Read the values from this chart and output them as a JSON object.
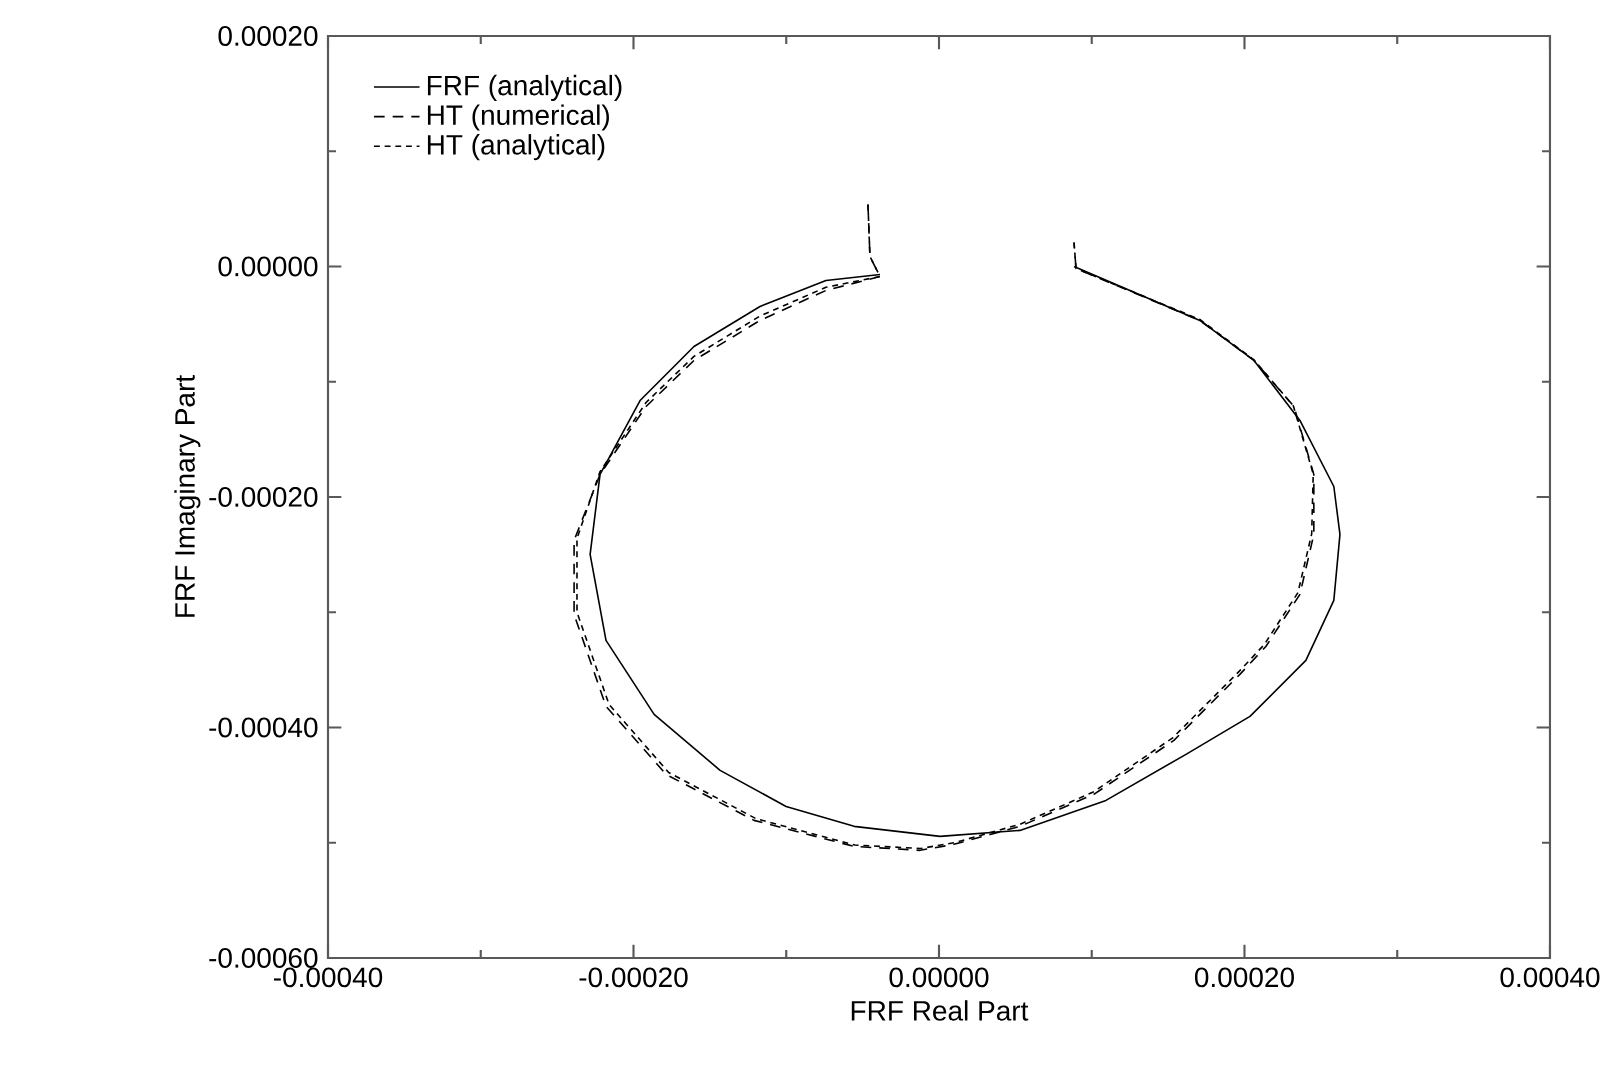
{
  "chart_data": {
    "type": "line",
    "xlabel": "FRF Real Part",
    "ylabel": "FRF Imaginary Part",
    "xlim": [
      -0.0004,
      0.0004
    ],
    "ylim": [
      -0.0006,
      0.0002
    ],
    "xticks": [
      {
        "value": -0.0004,
        "label": "-0.00040"
      },
      {
        "value": -0.0002,
        "label": "-0.00020"
      },
      {
        "value": 0,
        "label": "0.00000"
      },
      {
        "value": 0.0002,
        "label": "0.00020"
      },
      {
        "value": 0.0004,
        "label": "0.00040"
      }
    ],
    "yticks": [
      {
        "value": -0.0006,
        "label": "-0.00060"
      },
      {
        "value": -0.0004,
        "label": "-0.00040"
      },
      {
        "value": -0.0002,
        "label": "-0.00020"
      },
      {
        "value": 0,
        "label": "0.00000"
      },
      {
        "value": 0.0002,
        "label": "0.00020"
      }
    ],
    "legend": "top left",
    "grid": false,
    "marker": "none",
    "series": [
      {
        "name": "FRF (analytical)",
        "color": "#000000",
        "line_style": "solid",
        "x": [
          -3.86e-05,
          -7.4e-05,
          -0.0001172,
          -0.0001604,
          -0.0001957,
          -0.0002219,
          -0.0002284,
          -0.000218,
          -0.0001865,
          -0.0001433,
          -0.0001001,
          -5.56e-05,
          7e-07,
          5.3e-05,
          0.0001093,
          0.0001617,
          0.0002036,
          0.0002402,
          0.0002585,
          0.0002625,
          0.0002585,
          0.0002363,
          0.0002062,
          0.0001708,
          8.84e-05
        ],
        "values": [
          -6.9e-06,
          -1.21e-05,
          -3.47e-05,
          -6.94e-05,
          -0.0001163,
          -0.0001804,
          -0.0002498,
          -0.0003244,
          -0.0003886,
          -0.0004372,
          -0.0004685,
          -0.0004858,
          -0.0004945,
          -0.0004893,
          -0.0004633,
          -0.0004233,
          -0.0003904,
          -0.0003418,
          -0.0002897,
          -0.0002325,
          -0.0001909,
          -0.0001336,
          -8.15e-05,
          -4.68e-05,
          0
        ]
      },
      {
        "name": "HT (numerical)",
        "color": "#000000",
        "line_style": "dashed",
        "x": [
          -4.65e-05,
          -4.52e-05,
          -3.86e-05,
          -7.4e-05,
          -0.0001172,
          -0.0001604,
          -0.0001918,
          -0.0002219,
          -0.0002389,
          -0.0002389,
          -0.000218,
          -0.0001787,
          -0.0001211,
          -5.56e-05,
          -1.24e-05,
          9.8e-06,
          5.3e-05,
          0.0001014,
          0.0001538,
          0.000197,
          0.000214,
          0.0002363,
          0.0002454,
          0.0002454,
          0.0002324,
          0.0002062,
          0.0001708,
          8.97e-05,
          8.84e-05
        ],
        "values": [
          5.38e-05,
          8.7e-06,
          -8.7e-06,
          -2.08e-05,
          -4.68e-05,
          -8.15e-05,
          -0.0001215,
          -0.0001804,
          -0.0002377,
          -0.0003019,
          -0.0003817,
          -0.0004407,
          -0.0004806,
          -0.0005032,
          -0.0005066,
          -0.0005014,
          -0.0004858,
          -0.000458,
          -0.0004112,
          -0.0003539,
          -0.0003297,
          -0.0002845,
          -0.0002325,
          -0.0001804,
          -0.0001215,
          -8.15e-05,
          -4.68e-05,
          -1.7e-06,
          2.08e-05
        ]
      },
      {
        "name": "HT (analytical)",
        "color": "#000000",
        "line_style": "dotted",
        "x": [
          -4.65e-05,
          -4.52e-05,
          -3.86e-05,
          -7.4e-05,
          -0.0001172,
          -0.0001604,
          -0.0001918,
          -0.0002219,
          -0.000237,
          -0.000237,
          -0.000216,
          -0.000177,
          -0.00012,
          -5.5e-05,
          -1.2e-05,
          1e-05,
          5.3e-05,
          0.000101,
          0.000153,
          0.000196,
          0.000213,
          0.000235,
          0.000244,
          0.000245,
          0.000232,
          0.0002062,
          0.0001708,
          8.97e-05,
          8.84e-05
        ],
        "values": [
          5.38e-05,
          8.7e-06,
          -8.7e-06,
          -1.8e-05,
          -4.3e-05,
          -7.8e-05,
          -0.000118,
          -0.000178,
          -0.000236,
          -0.0003,
          -0.00038,
          -0.000439,
          -0.000479,
          -0.000502,
          -0.000505,
          -0.0005,
          -0.000484,
          -0.000456,
          -0.000409,
          -0.000352,
          -0.000328,
          -0.000283,
          -0.000232,
          -0.00018,
          -0.000121,
          -8.1e-05,
          -4.6e-05,
          -1.7e-06,
          2.08e-05
        ]
      }
    ]
  }
}
